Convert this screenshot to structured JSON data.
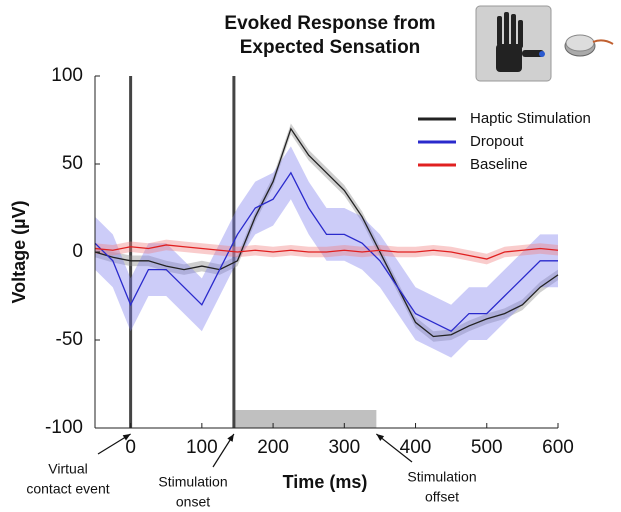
{
  "chart_data": {
    "type": "line",
    "title": [
      "Evoked Response from",
      "Expected Sensation"
    ],
    "x_label": "Time (ms)",
    "y_label": "Voltage (µV)",
    "x": [
      -50,
      -25,
      0,
      25,
      50,
      75,
      100,
      125,
      150,
      175,
      200,
      225,
      250,
      275,
      300,
      325,
      350,
      375,
      400,
      425,
      450,
      475,
      500,
      525,
      550,
      575,
      600
    ],
    "series": [
      {
        "name": "Haptic Stimulation",
        "color": "#222222",
        "band_color": "#888888",
        "error": 3,
        "values": [
          0,
          -3,
          -5,
          -5,
          -8,
          -10,
          -8,
          -10,
          -5,
          20,
          40,
          70,
          55,
          45,
          35,
          20,
          0,
          -20,
          -40,
          -48,
          -47,
          -42,
          -38,
          -35,
          -30,
          -20,
          -13
        ]
      },
      {
        "name": "Dropout",
        "color": "#2a2acc",
        "band_color": "#8080ee",
        "error": 15,
        "values": [
          5,
          -5,
          -30,
          -10,
          -10,
          -20,
          -30,
          -10,
          10,
          25,
          30,
          45,
          25,
          10,
          10,
          5,
          -5,
          -20,
          -35,
          -40,
          -45,
          -35,
          -35,
          -25,
          -15,
          -5,
          -5
        ]
      },
      {
        "name": "Baseline",
        "color": "#e02020",
        "band_color": "#f08080",
        "error": 3,
        "values": [
          2,
          1,
          3,
          2,
          4,
          3,
          2,
          1,
          0,
          1,
          0,
          1,
          0,
          0,
          1,
          0,
          1,
          0,
          0,
          1,
          0,
          -2,
          -4,
          0,
          1,
          2,
          1
        ]
      }
    ],
    "xlim": [
      -50,
      600
    ],
    "ylim": [
      -100,
      100
    ],
    "xticks": [
      0,
      100,
      200,
      300,
      400,
      500,
      600
    ],
    "yticks": [
      -100,
      -50,
      0,
      50,
      100
    ],
    "vlines": [
      0,
      145
    ],
    "stimulus_span": [
      145,
      345
    ],
    "annotations": [
      {
        "text": [
          "Virtual",
          "contact event"
        ],
        "x": 0
      },
      {
        "text": [
          "Stimulation",
          "onset"
        ],
        "x": 145
      },
      {
        "text": [
          "Stimulation",
          "offset"
        ],
        "x": 345
      }
    ],
    "legend": "top-right"
  }
}
